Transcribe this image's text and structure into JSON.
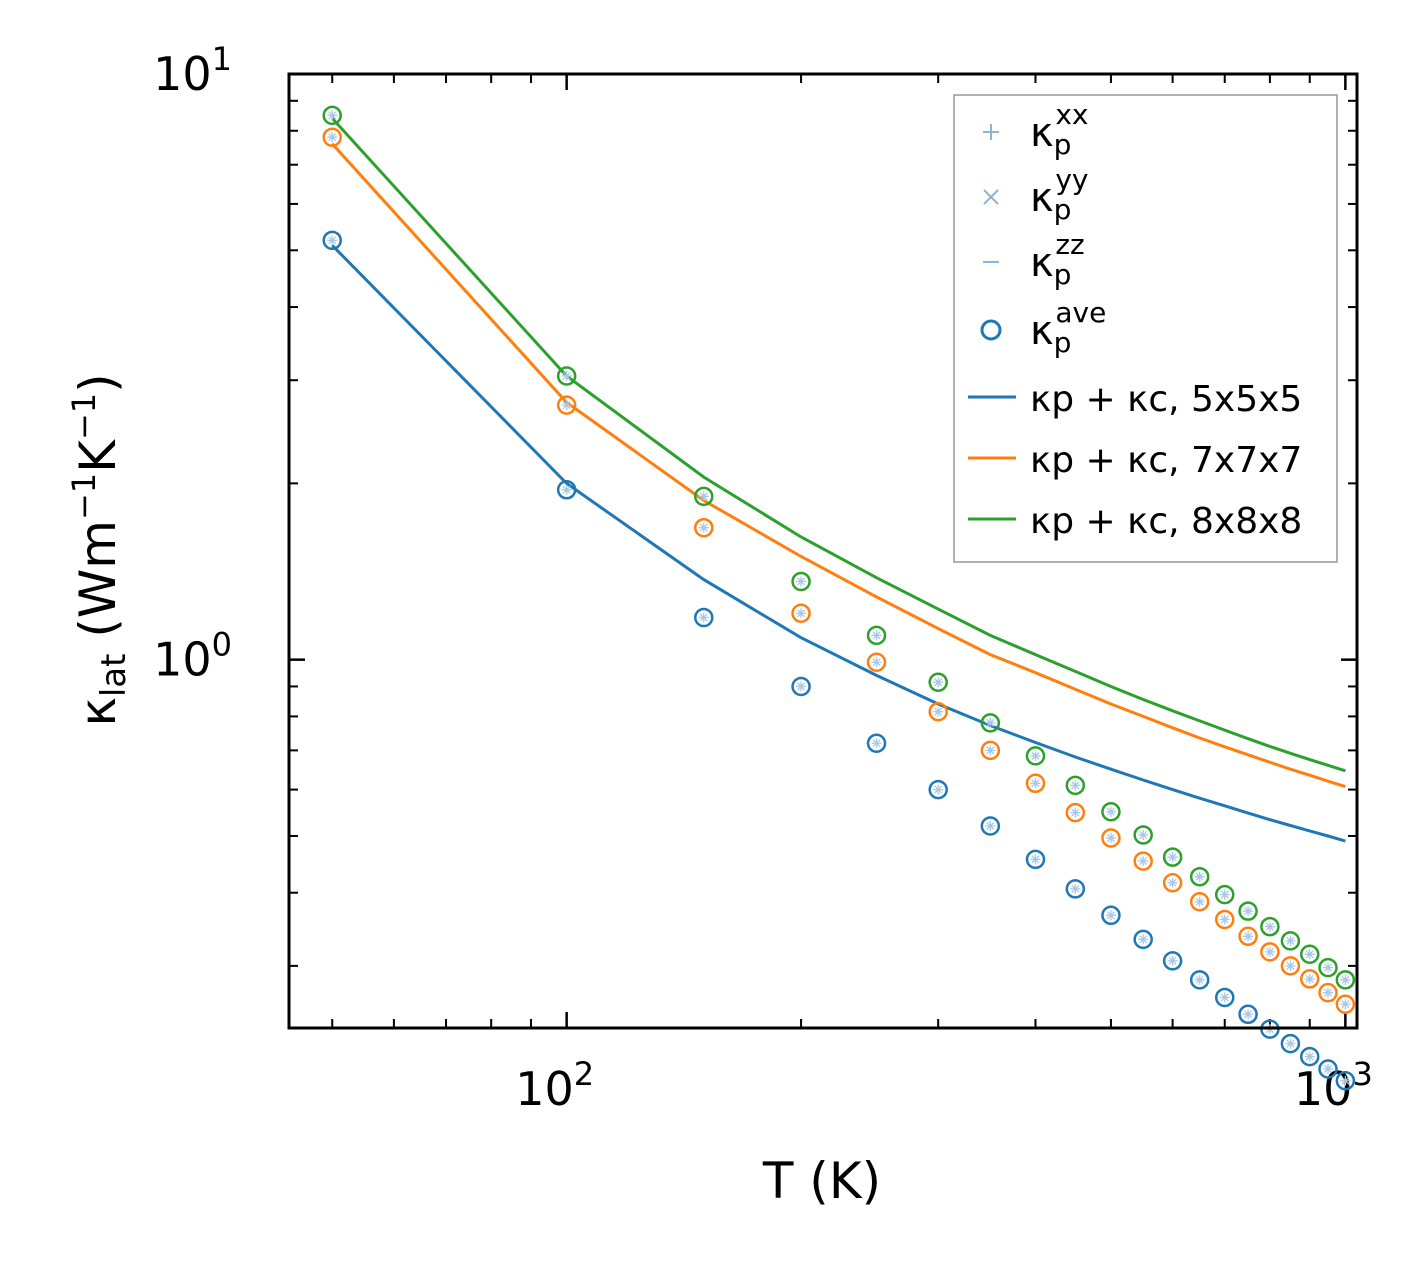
{
  "chart_data": {
    "type": "scatter",
    "title": "",
    "xlabel": "T (K)",
    "ylabel_parts": {
      "base": "κ",
      "sub": "lat",
      "units_pre": " (Wm",
      "exp1": "−1",
      "units_mid": "K",
      "exp2": "−1",
      "units_post": ")"
    },
    "xscale": "log",
    "yscale": "log",
    "xlim": [
      44,
      1035
    ],
    "ylim": [
      0.235,
      10.0
    ],
    "xticks": [
      {
        "value": 100,
        "base": "10",
        "exp": "2"
      },
      {
        "value": 1000,
        "base": "10",
        "exp": "3"
      }
    ],
    "yticks": [
      {
        "value": 1,
        "base": "10",
        "exp": "0"
      },
      {
        "value": 10,
        "base": "10",
        "exp": "1"
      }
    ],
    "series": [
      {
        "name": "5x5x5",
        "color": "#1f77b4",
        "scatter_x": [
          50,
          100,
          150,
          200,
          250,
          300,
          350,
          400,
          450,
          500,
          550,
          600,
          650,
          700,
          750,
          800,
          850,
          900,
          950,
          1000
        ],
        "scatter_y": [
          5.2,
          1.95,
          1.18,
          0.9,
          0.72,
          0.6,
          0.52,
          0.456,
          0.406,
          0.366,
          0.333,
          0.306,
          0.284,
          0.265,
          0.248,
          0.234,
          0.221,
          0.21,
          0.2,
          0.191
        ],
        "line_x": [
          50,
          100,
          150,
          200,
          250,
          300,
          350,
          400,
          450,
          500,
          550,
          600,
          650,
          700,
          750,
          800,
          850,
          900,
          950,
          1000
        ],
        "line_y": [
          5.1,
          2.0,
          1.37,
          1.09,
          0.94,
          0.84,
          0.772,
          0.722,
          0.682,
          0.65,
          0.623,
          0.6,
          0.58,
          0.563,
          0.547,
          0.533,
          0.521,
          0.51,
          0.5,
          0.49
        ]
      },
      {
        "name": "7x7x7",
        "color": "#ff7f0e",
        "scatter_x": [
          50,
          100,
          150,
          200,
          250,
          300,
          350,
          400,
          450,
          500,
          550,
          600,
          650,
          700,
          750,
          800,
          850,
          900,
          950,
          1000
        ],
        "scatter_y": [
          7.8,
          2.72,
          1.68,
          1.2,
          0.99,
          0.815,
          0.7,
          0.615,
          0.548,
          0.496,
          0.453,
          0.416,
          0.386,
          0.36,
          0.337,
          0.317,
          0.3,
          0.285,
          0.27,
          0.258
        ],
        "line_x": [
          50,
          100,
          150,
          200,
          250,
          300,
          350,
          400,
          450,
          500,
          550,
          600,
          650,
          700,
          750,
          800,
          850,
          900,
          950,
          1000
        ],
        "line_y": [
          7.6,
          2.75,
          1.87,
          1.5,
          1.28,
          1.13,
          1.02,
          0.95,
          0.89,
          0.84,
          0.8,
          0.765,
          0.735,
          0.71,
          0.688,
          0.668,
          0.65,
          0.635,
          0.62,
          0.607
        ]
      },
      {
        "name": "8x8x8",
        "color": "#2ca02c",
        "scatter_x": [
          50,
          100,
          150,
          200,
          250,
          300,
          350,
          400,
          450,
          500,
          550,
          600,
          650,
          700,
          750,
          800,
          850,
          900,
          950,
          1000
        ],
        "scatter_y": [
          8.5,
          3.05,
          1.9,
          1.36,
          1.1,
          0.915,
          0.78,
          0.685,
          0.61,
          0.55,
          0.502,
          0.46,
          0.426,
          0.397,
          0.372,
          0.35,
          0.331,
          0.314,
          0.298,
          0.284
        ],
        "line_x": [
          50,
          100,
          150,
          200,
          250,
          300,
          350,
          400,
          450,
          500,
          550,
          600,
          650,
          700,
          750,
          800,
          850,
          900,
          950,
          1000
        ],
        "line_y": [
          8.4,
          3.05,
          2.05,
          1.62,
          1.38,
          1.22,
          1.1,
          1.02,
          0.955,
          0.9,
          0.855,
          0.818,
          0.786,
          0.758,
          0.733,
          0.711,
          0.692,
          0.675,
          0.66,
          0.646
        ]
      }
    ],
    "legend": {
      "position": "top-right",
      "entries": [
        {
          "kind": "plus",
          "label_base": "κ",
          "sub": "p",
          "sup": "xx",
          "color": "#8fb3d6"
        },
        {
          "kind": "cross",
          "label_base": "κ",
          "sub": "p",
          "sup": "yy",
          "color": "#8fb3d6"
        },
        {
          "kind": "dash",
          "label_base": "κ",
          "sub": "p",
          "sup": "zz",
          "color": "#8fb3d6"
        },
        {
          "kind": "circle",
          "label_base": "κ",
          "sub": "p",
          "sup": "ave",
          "color": "#1f77b4"
        },
        {
          "kind": "line",
          "label": "κp + κc, 5x5x5",
          "color": "#1f77b4"
        },
        {
          "kind": "line",
          "label": "κp + κc, 7x7x7",
          "color": "#ff7f0e"
        },
        {
          "kind": "line",
          "label": "κp + κc, 8x8x8",
          "color": "#2ca02c"
        }
      ]
    }
  }
}
